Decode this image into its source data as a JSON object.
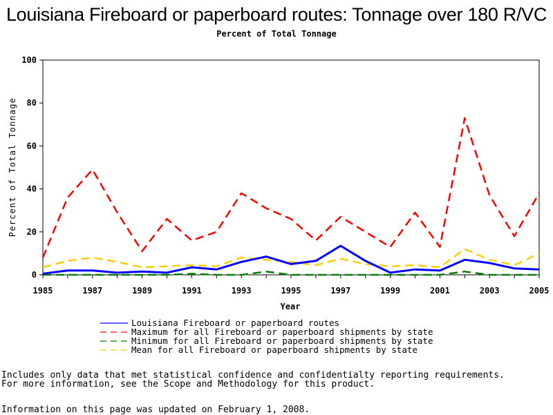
{
  "chart_data": {
    "type": "line",
    "title": "Louisiana Fireboard or paperboard routes: Tonnage over 180 R/VC",
    "subtitle": "Percent of Total Tonnage",
    "xlabel": "Year",
    "ylabel": "Percent of Total Tonnage",
    "xlim": [
      1985,
      2005
    ],
    "ylim": [
      0,
      100
    ],
    "x_ticks": [
      "1985",
      "1987",
      "1989",
      "1991",
      "1993",
      "1995",
      "1997",
      "1999",
      "2001",
      "2003",
      "2005"
    ],
    "y_ticks": [
      "0",
      "20",
      "40",
      "60",
      "80",
      "100"
    ],
    "grid": false,
    "legend_position": "bottom",
    "x": [
      1985,
      1986,
      1987,
      1988,
      1989,
      1990,
      1991,
      1992,
      1993,
      1994,
      1995,
      1996,
      1997,
      1998,
      1999,
      2000,
      2001,
      2002,
      2003,
      2004,
      2005
    ],
    "series": [
      {
        "name": "Louisiana Fireboard or paperboard routes",
        "color": "#0000ff",
        "style": "solid",
        "values": [
          0.5,
          2,
          2,
          1,
          1.5,
          1,
          3.5,
          2.5,
          6,
          8.5,
          5,
          6.5,
          13.5,
          6.5,
          1,
          2.5,
          2,
          7,
          5.5,
          3,
          2.5
        ]
      },
      {
        "name": "Maximum for all Fireboard or paperboard shipments by state",
        "color": "#ff0000",
        "style": "dashed",
        "values": [
          8,
          36,
          49,
          29,
          11,
          26,
          16,
          20,
          38,
          31,
          26,
          16,
          27,
          20,
          13,
          29,
          13,
          73,
          37,
          18,
          38
        ]
      },
      {
        "name": "Minimum for all Fireboard or paperboard shipments by state",
        "color": "#008000",
        "style": "dashed",
        "values": [
          0,
          0,
          0,
          0,
          0,
          0,
          0.5,
          0,
          0,
          1.5,
          0,
          0,
          0,
          0,
          0,
          0,
          0,
          1.5,
          0,
          0,
          0
        ]
      },
      {
        "name": "Mean for all Fireboard or paperboard shipments by state",
        "color": "#ffcc00",
        "style": "dashed",
        "values": [
          3.5,
          6.5,
          8,
          6,
          3.5,
          4,
          4.5,
          4,
          8,
          7,
          6,
          4.5,
          7.5,
          5,
          4,
          4.5,
          3.5,
          12,
          7,
          4.5,
          10
        ]
      }
    ]
  },
  "footnotes": {
    "line1": "Includes only data that met statistical confidence and confidentialty reporting requirements.",
    "line2": "For more information, see the Scope and Methodology for this product.",
    "line3": "Information on this page was updated on February 1, 2008."
  }
}
